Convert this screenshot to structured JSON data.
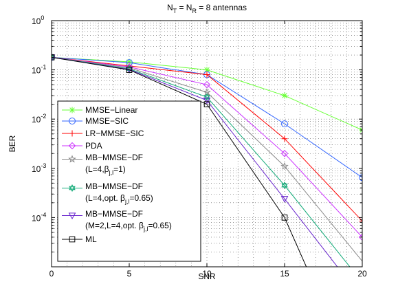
{
  "chart_data": {
    "type": "line",
    "title": {
      "base": "N",
      "sub1": "T",
      "eq": " = N",
      "sub2": "R",
      "tail": " = 8 antennas"
    },
    "xlabel": "SNR",
    "ylabel": "BER",
    "xlim": [
      0,
      20
    ],
    "ylim": [
      1e-05,
      1
    ],
    "yscale": "log",
    "grid": "dotted, major and minor",
    "legend_position": "lower-left",
    "x_ticks": [
      "0",
      "5",
      "10",
      "15",
      "20"
    ],
    "y_ticks": [
      {
        "exp": "0",
        "value": 1
      },
      {
        "exp": "-1",
        "value": 0.1
      },
      {
        "exp": "-2",
        "value": 0.01
      },
      {
        "exp": "-3",
        "value": 0.001
      },
      {
        "exp": "-4",
        "value": 0.0001
      }
    ],
    "series": [
      {
        "name": "MMSE−Linear",
        "color": "#66ff33",
        "marker": "asterisk",
        "x": [
          0,
          5,
          10,
          15,
          20
        ],
        "y": [
          0.18,
          0.145,
          0.1,
          0.03,
          0.006
        ],
        "legend": [
          {
            "t": "MMSE−Linear"
          }
        ]
      },
      {
        "name": "MMSE−SIC",
        "color": "#3366ff",
        "marker": "circle",
        "x": [
          0,
          5,
          10,
          15,
          20
        ],
        "y": [
          0.18,
          0.14,
          0.08,
          0.008,
          0.00065
        ],
        "legend": [
          {
            "t": "MMSE−SIC"
          }
        ]
      },
      {
        "name": "LR−MMSE−SIC",
        "color": "#ff0000",
        "marker": "plus",
        "x": [
          0,
          5,
          10,
          15,
          20
        ],
        "y": [
          0.18,
          0.12,
          0.08,
          0.004,
          8.5e-05
        ],
        "legend": [
          {
            "t": "LR−MMSE−SIC"
          }
        ]
      },
      {
        "name": "PDA",
        "color": "#cc33ff",
        "marker": "diamond",
        "x": [
          0,
          5,
          10,
          15,
          20
        ],
        "y": [
          0.18,
          0.115,
          0.05,
          0.002,
          4e-05
        ],
        "legend": [
          {
            "t": "PDA"
          }
        ]
      },
      {
        "name": "MB−MMSE−DF (L=4,βj,l=1)",
        "color": "#888888",
        "marker": "star",
        "x": [
          0,
          5,
          10,
          15,
          20
        ],
        "y": [
          0.18,
          0.11,
          0.035,
          0.0011,
          1.3e-05
        ],
        "legend": [
          {
            "t": "MB−MMSE−DF"
          },
          {
            "t": "(L=4,β",
            "sub": "j,l",
            "after": "=1)"
          }
        ]
      },
      {
        "name": "MB−MMSE−DF (L=4,opt. βj,l=0.65)",
        "color": "#11aa77",
        "marker": "hexagram",
        "x": [
          0,
          5,
          10,
          15,
          19.2
        ],
        "y": [
          0.18,
          0.105,
          0.028,
          0.00045,
          1e-05
        ],
        "legend": [
          {
            "t": "MB−MMSE−DF"
          },
          {
            "t": "(L=4,opt. β",
            "sub": "j,l",
            "after": "=0.65)"
          }
        ]
      },
      {
        "name": "MB−MMSE−DF (M=2,L=4,opt. βj,l=0.65)",
        "color": "#6622cc",
        "marker": "triangle-down",
        "x": [
          0,
          5,
          10,
          15,
          18.4
        ],
        "y": [
          0.18,
          0.102,
          0.024,
          0.00024,
          1e-05
        ],
        "legend": [
          {
            "t": "MB−MMSE−DF"
          },
          {
            "t": "(M=2,L=4,opt. β",
            "sub": "j,l",
            "after": "=0.65)"
          }
        ]
      },
      {
        "name": "ML",
        "color": "#000000",
        "marker": "square",
        "x": [
          0,
          5,
          10,
          15,
          16.4
        ],
        "y": [
          0.18,
          0.1,
          0.02,
          0.0001,
          1e-05
        ],
        "legend": [
          {
            "t": "ML"
          }
        ]
      }
    ]
  }
}
